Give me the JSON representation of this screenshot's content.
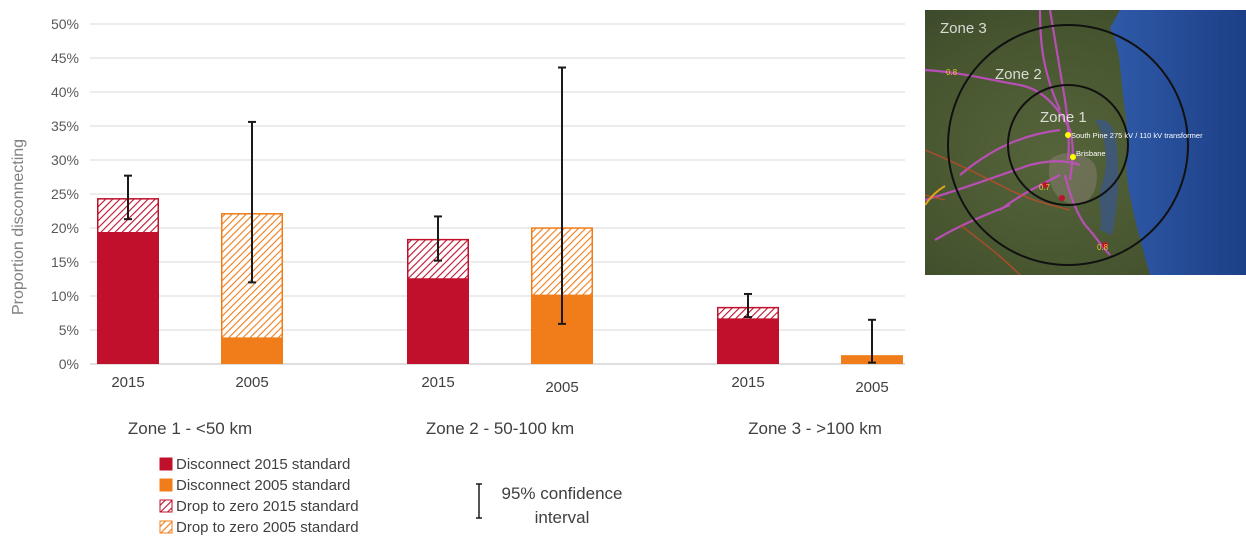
{
  "chart_data": {
    "type": "bar",
    "ylabel": "Proportion disconnecting",
    "ylim": [
      0,
      50
    ],
    "yticks": [
      "0%",
      "5%",
      "10%",
      "15%",
      "20%",
      "25%",
      "30%",
      "35%",
      "40%",
      "45%",
      "50%"
    ],
    "grid": true,
    "legend_position": "bottom-left",
    "groups": [
      {
        "label": "Zone 1 - <50 km",
        "bars": [
          {
            "category": "2015",
            "standard": "2015",
            "disconnect": 19.3,
            "drop_to_zero": 5.1,
            "ci": [
              21.3,
              27.7
            ]
          },
          {
            "category": "2005",
            "standard": "2005",
            "disconnect": 3.8,
            "drop_to_zero": 18.4,
            "ci": [
              12.0,
              35.6
            ]
          }
        ]
      },
      {
        "label": "Zone 2 - 50-100 km",
        "bars": [
          {
            "category": "2015",
            "standard": "2015",
            "disconnect": 12.5,
            "drop_to_zero": 5.9,
            "ci": [
              15.2,
              21.7
            ]
          },
          {
            "category": "2005",
            "standard": "2005",
            "disconnect": 10.1,
            "drop_to_zero": 10.0,
            "ci": [
              5.9,
              43.6
            ]
          }
        ]
      },
      {
        "label": "Zone 3 - >100 km",
        "bars": [
          {
            "category": "2015",
            "standard": "2015",
            "disconnect": 6.6,
            "drop_to_zero": 1.8,
            "ci": [
              6.9,
              10.3
            ]
          },
          {
            "category": "2005",
            "standard": "2005",
            "disconnect": 1.3,
            "drop_to_zero": 0,
            "ci": [
              0.2,
              6.5
            ]
          }
        ]
      }
    ],
    "legend": [
      {
        "label": "Disconnect 2015 standard",
        "swatch": "solid",
        "color": "#c0102c"
      },
      {
        "label": "Disconnect 2005 standard",
        "swatch": "solid",
        "color": "#f07d19"
      },
      {
        "label": "Drop to zero 2015 standard",
        "swatch": "hatch",
        "color": "#c0102c"
      },
      {
        "label": "Drop to zero 2005 standard",
        "swatch": "hatch",
        "color": "#f07d19"
      }
    ],
    "ci_legend": [
      "95% confidence",
      "interval"
    ],
    "colors": {
      "2015": "#c0102c",
      "2005": "#f07d19",
      "errorbar": "#1a1a1a",
      "grid": "#d9d9d9"
    }
  },
  "map": {
    "zone_labels": [
      "Zone 3",
      "Zone 2",
      "Zone 1"
    ],
    "place_labels": [
      "South Pine 275 kV / 110 kV transformer",
      "Brisbane"
    ],
    "marker_labels": [
      "0.8",
      "0.7",
      "0.8"
    ]
  }
}
